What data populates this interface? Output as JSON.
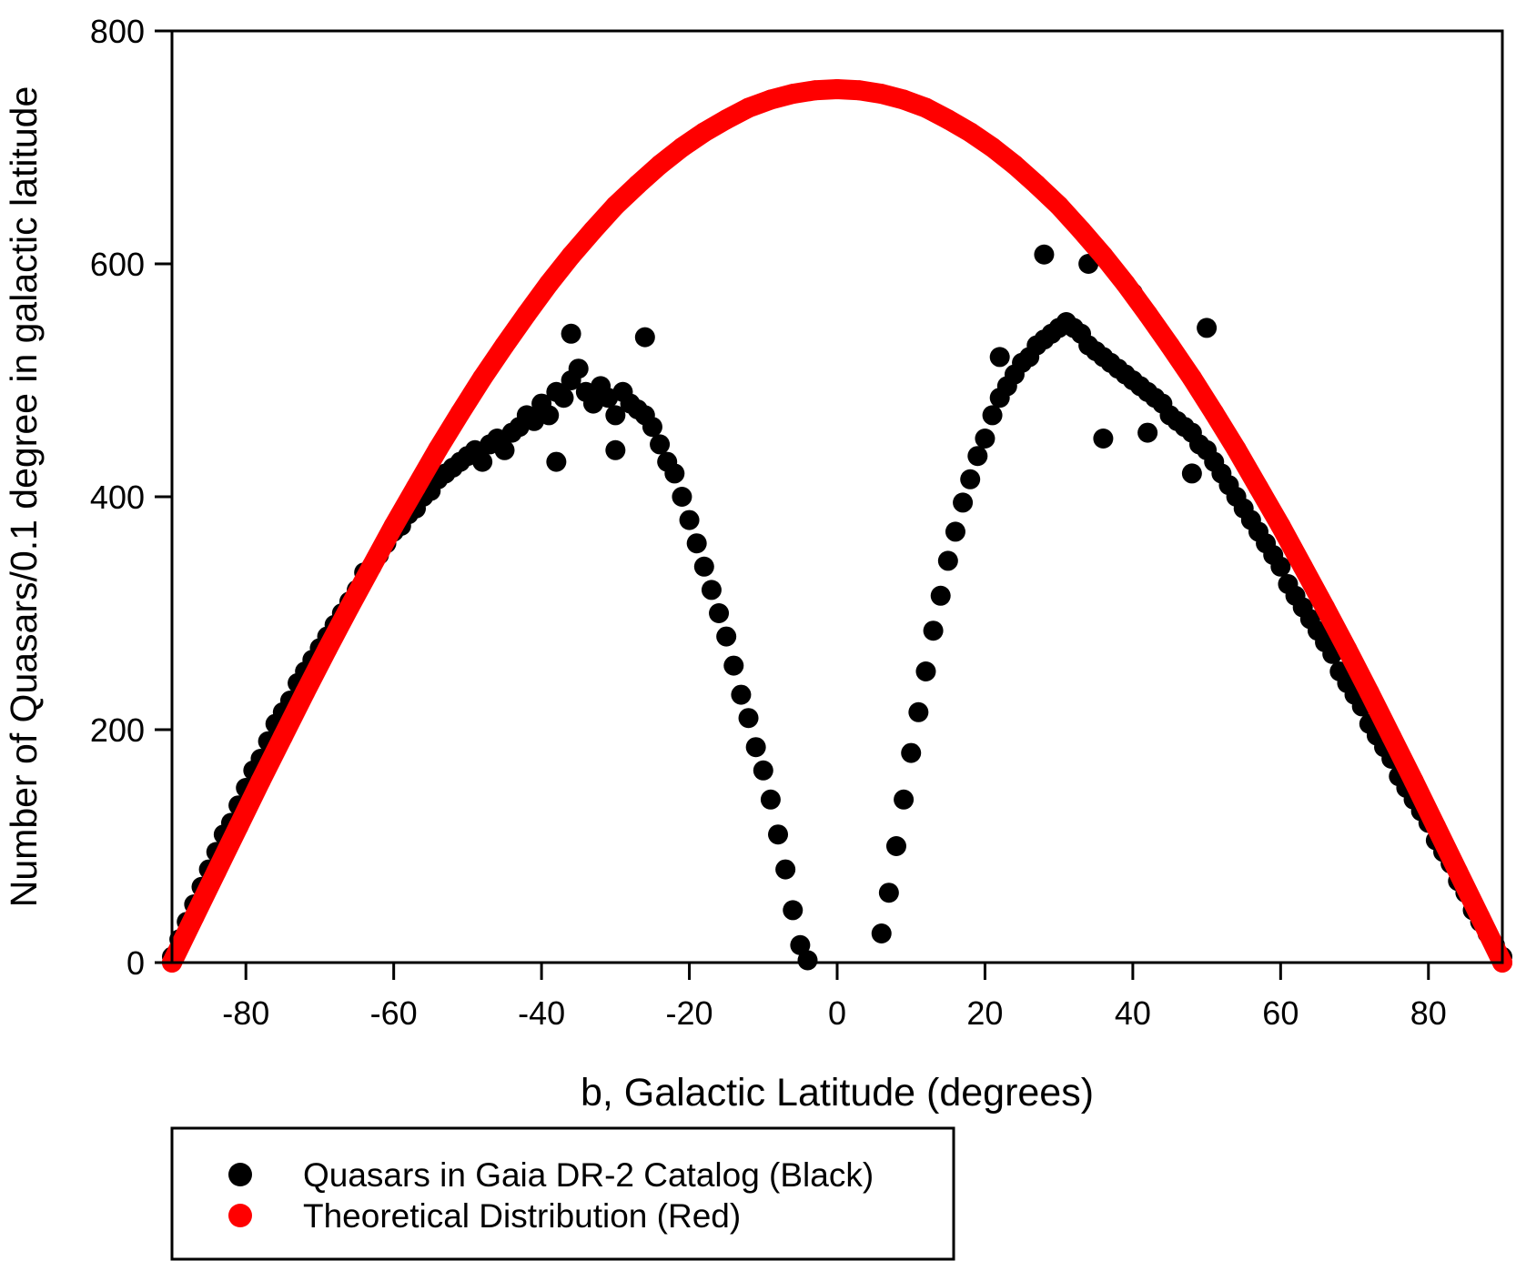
{
  "chart_data": {
    "type": "scatter",
    "xlabel": "b, Galactic Latitude (degrees)",
    "ylabel": "Number of Quasars/0.1 degree in galactic latitude",
    "xlim": [
      -90,
      90
    ],
    "ylim": [
      0,
      800
    ],
    "xticks": [
      -80,
      -60,
      -40,
      -20,
      0,
      20,
      40,
      60,
      80
    ],
    "yticks": [
      0,
      200,
      400,
      600,
      800
    ],
    "grid": false,
    "legend_placement": "bottom-left below plot",
    "series": [
      {
        "name": "Quasars in Gaia DR-2 Catalog (Black)",
        "color": "#000000",
        "points": [
          [
            -90,
            5
          ],
          [
            -89,
            20
          ],
          [
            -88,
            35
          ],
          [
            -87,
            50
          ],
          [
            -86,
            65
          ],
          [
            -85,
            80
          ],
          [
            -84,
            95
          ],
          [
            -83,
            110
          ],
          [
            -82,
            120
          ],
          [
            -81,
            135
          ],
          [
            -80,
            150
          ],
          [
            -79,
            165
          ],
          [
            -78,
            175
          ],
          [
            -77,
            190
          ],
          [
            -76,
            205
          ],
          [
            -75,
            215
          ],
          [
            -74,
            225
          ],
          [
            -73,
            240
          ],
          [
            -72,
            250
          ],
          [
            -71,
            260
          ],
          [
            -70,
            270
          ],
          [
            -69,
            280
          ],
          [
            -68,
            290
          ],
          [
            -67,
            300
          ],
          [
            -66,
            310
          ],
          [
            -65,
            320
          ],
          [
            -64,
            335
          ],
          [
            -63,
            340
          ],
          [
            -62,
            350
          ],
          [
            -61,
            360
          ],
          [
            -60,
            370
          ],
          [
            -59,
            375
          ],
          [
            -58,
            385
          ],
          [
            -57,
            390
          ],
          [
            -56,
            400
          ],
          [
            -55,
            405
          ],
          [
            -54,
            415
          ],
          [
            -53,
            420
          ],
          [
            -52,
            425
          ],
          [
            -51,
            430
          ],
          [
            -50,
            435
          ],
          [
            -49,
            440
          ],
          [
            -48,
            430
          ],
          [
            -47,
            445
          ],
          [
            -46,
            450
          ],
          [
            -45,
            440
          ],
          [
            -44,
            455
          ],
          [
            -43,
            460
          ],
          [
            -42,
            470
          ],
          [
            -41,
            465
          ],
          [
            -40,
            480
          ],
          [
            -39,
            470
          ],
          [
            -38,
            490
          ],
          [
            -37,
            485
          ],
          [
            -36,
            500
          ],
          [
            -35,
            510
          ],
          [
            -34,
            490
          ],
          [
            -33,
            480
          ],
          [
            -32,
            495
          ],
          [
            -31,
            485
          ],
          [
            -30,
            470
          ],
          [
            -29,
            490
          ],
          [
            -28,
            480
          ],
          [
            -27,
            475
          ],
          [
            -26,
            470
          ],
          [
            -25,
            460
          ],
          [
            -24,
            445
          ],
          [
            -23,
            430
          ],
          [
            -22,
            420
          ],
          [
            -21,
            400
          ],
          [
            -20,
            380
          ],
          [
            -19,
            360
          ],
          [
            -18,
            340
          ],
          [
            -17,
            320
          ],
          [
            -16,
            300
          ],
          [
            -15,
            280
          ],
          [
            -14,
            255
          ],
          [
            -13,
            230
          ],
          [
            -12,
            210
          ],
          [
            -11,
            185
          ],
          [
            -10,
            165
          ],
          [
            -9,
            140
          ],
          [
            -8,
            110
          ],
          [
            -7,
            80
          ],
          [
            -6,
            45
          ],
          [
            -5,
            15
          ],
          [
            -4,
            2
          ],
          [
            6,
            25
          ],
          [
            7,
            60
          ],
          [
            8,
            100
          ],
          [
            9,
            140
          ],
          [
            10,
            180
          ],
          [
            11,
            215
          ],
          [
            12,
            250
          ],
          [
            13,
            285
          ],
          [
            14,
            315
          ],
          [
            15,
            345
          ],
          [
            16,
            370
          ],
          [
            17,
            395
          ],
          [
            18,
            415
          ],
          [
            19,
            435
          ],
          [
            20,
            450
          ],
          [
            21,
            470
          ],
          [
            22,
            485
          ],
          [
            23,
            495
          ],
          [
            24,
            505
          ],
          [
            25,
            515
          ],
          [
            26,
            520
          ],
          [
            27,
            530
          ],
          [
            28,
            535
          ],
          [
            29,
            540
          ],
          [
            30,
            545
          ],
          [
            31,
            550
          ],
          [
            32,
            545
          ],
          [
            33,
            540
          ],
          [
            34,
            530
          ],
          [
            35,
            525
          ],
          [
            36,
            520
          ],
          [
            37,
            515
          ],
          [
            38,
            510
          ],
          [
            39,
            505
          ],
          [
            40,
            500
          ],
          [
            41,
            495
          ],
          [
            42,
            490
          ],
          [
            43,
            485
          ],
          [
            44,
            480
          ],
          [
            45,
            470
          ],
          [
            46,
            465
          ],
          [
            47,
            460
          ],
          [
            48,
            455
          ],
          [
            49,
            445
          ],
          [
            50,
            440
          ],
          [
            51,
            430
          ],
          [
            52,
            420
          ],
          [
            53,
            410
          ],
          [
            54,
            400
          ],
          [
            55,
            390
          ],
          [
            56,
            380
          ],
          [
            57,
            370
          ],
          [
            58,
            360
          ],
          [
            59,
            350
          ],
          [
            60,
            340
          ],
          [
            61,
            325
          ],
          [
            62,
            315
          ],
          [
            63,
            305
          ],
          [
            64,
            295
          ],
          [
            65,
            285
          ],
          [
            66,
            275
          ],
          [
            67,
            265
          ],
          [
            68,
            250
          ],
          [
            69,
            240
          ],
          [
            70,
            230
          ],
          [
            71,
            220
          ],
          [
            72,
            205
          ],
          [
            73,
            195
          ],
          [
            74,
            185
          ],
          [
            75,
            175
          ],
          [
            76,
            160
          ],
          [
            77,
            150
          ],
          [
            78,
            140
          ],
          [
            79,
            130
          ],
          [
            80,
            120
          ],
          [
            81,
            105
          ],
          [
            82,
            95
          ],
          [
            83,
            85
          ],
          [
            84,
            70
          ],
          [
            85,
            60
          ],
          [
            86,
            45
          ],
          [
            87,
            35
          ],
          [
            88,
            25
          ],
          [
            89,
            15
          ],
          [
            90,
            5
          ],
          [
            28,
            608
          ],
          [
            34,
            600
          ],
          [
            40,
            575
          ],
          [
            -26,
            537
          ],
          [
            -36,
            540
          ],
          [
            50,
            545
          ],
          [
            36,
            450
          ],
          [
            48,
            420
          ],
          [
            -38,
            430
          ],
          [
            -30,
            440
          ],
          [
            42,
            455
          ],
          [
            22,
            520
          ]
        ]
      },
      {
        "name": "Theoretical Distribution (Red)",
        "color": "#ff0000",
        "points": [
          [
            -90,
            0
          ],
          [
            -87,
            39
          ],
          [
            -84,
            78
          ],
          [
            -81,
            117
          ],
          [
            -78,
            156
          ],
          [
            -75,
            194
          ],
          [
            -72,
            232
          ],
          [
            -69,
            269
          ],
          [
            -66,
            305
          ],
          [
            -63,
            340
          ],
          [
            -60,
            375
          ],
          [
            -57,
            408
          ],
          [
            -54,
            441
          ],
          [
            -51,
            472
          ],
          [
            -48,
            502
          ],
          [
            -45,
            530
          ],
          [
            -42,
            557
          ],
          [
            -39,
            583
          ],
          [
            -36,
            607
          ],
          [
            -33,
            629
          ],
          [
            -30,
            650
          ],
          [
            -27,
            668
          ],
          [
            -24,
            685
          ],
          [
            -21,
            700
          ],
          [
            -18,
            713
          ],
          [
            -15,
            724
          ],
          [
            -12,
            734
          ],
          [
            -9,
            741
          ],
          [
            -6,
            746
          ],
          [
            -3,
            749
          ],
          [
            0,
            750
          ],
          [
            3,
            749
          ],
          [
            6,
            746
          ],
          [
            9,
            741
          ],
          [
            12,
            734
          ],
          [
            15,
            724
          ],
          [
            18,
            713
          ],
          [
            21,
            700
          ],
          [
            24,
            685
          ],
          [
            27,
            668
          ],
          [
            30,
            650
          ],
          [
            33,
            629
          ],
          [
            36,
            607
          ],
          [
            39,
            583
          ],
          [
            42,
            557
          ],
          [
            45,
            530
          ],
          [
            48,
            502
          ],
          [
            51,
            472
          ],
          [
            54,
            441
          ],
          [
            57,
            408
          ],
          [
            60,
            375
          ],
          [
            63,
            340
          ],
          [
            66,
            305
          ],
          [
            69,
            269
          ],
          [
            72,
            232
          ],
          [
            75,
            194
          ],
          [
            78,
            156
          ],
          [
            81,
            117
          ],
          [
            84,
            78
          ],
          [
            87,
            39
          ],
          [
            90,
            0
          ]
        ]
      }
    ]
  }
}
